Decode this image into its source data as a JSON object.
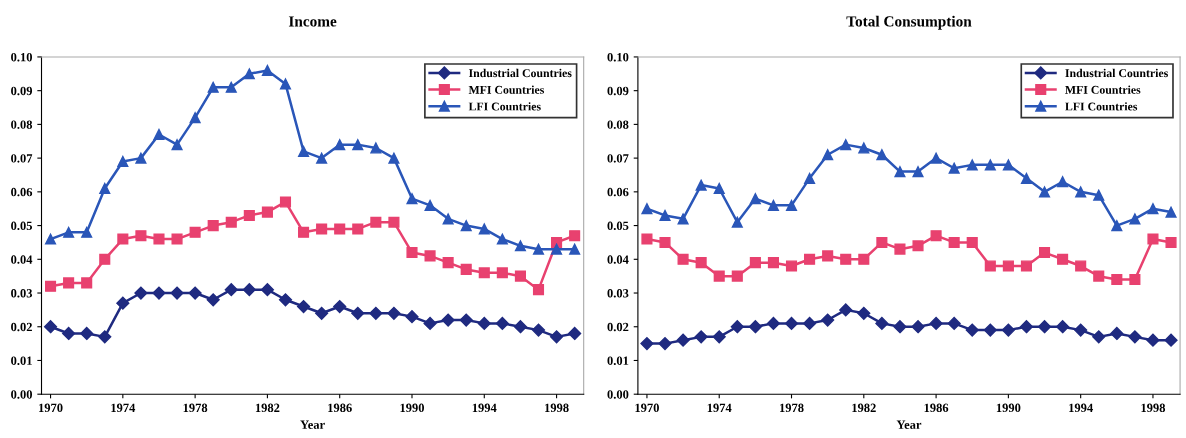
{
  "chart_data": [
    {
      "type": "line",
      "title": "Income",
      "xlabel": "Year",
      "categories": [
        "1970",
        null,
        null,
        null,
        "1974",
        null,
        null,
        null,
        "1978",
        null,
        null,
        null,
        "1982",
        null,
        null,
        null,
        "1986",
        null,
        null,
        null,
        "1990",
        null,
        null,
        null,
        "1994",
        null,
        null,
        null,
        "1998",
        null
      ],
      "ylim": [
        0,
        0.1
      ],
      "yticks": [
        {
          "value": 0,
          "label": "0.00"
        },
        {
          "value": 0.01,
          "label": "0.01"
        },
        {
          "value": 0.02,
          "label": "0.02"
        },
        {
          "value": 0.03,
          "label": "0.03"
        },
        {
          "value": 0.04,
          "label": "0.04"
        },
        {
          "value": 0.05,
          "label": "0.05"
        },
        {
          "value": 0.06,
          "label": "0.06"
        },
        {
          "value": 0.07,
          "label": "0.07"
        },
        {
          "value": 0.08,
          "label": "0.08"
        },
        {
          "value": 0.09,
          "label": "0.09"
        },
        {
          "value": 0.1,
          "label": "0.10"
        }
      ],
      "grid": false,
      "legend": "top right",
      "series": [
        {
          "name": "Industrial Countries",
          "color": "#1f2a80",
          "marker": "diamond",
          "values": [
            0.02,
            0.018,
            0.018,
            0.017,
            0.027,
            0.03,
            0.03,
            0.03,
            0.03,
            0.028,
            0.031,
            0.031,
            0.031,
            0.028,
            0.026,
            0.024,
            0.026,
            0.024,
            0.024,
            0.024,
            0.023,
            0.021,
            0.022,
            0.022,
            0.021,
            0.021,
            0.02,
            0.019,
            0.017,
            0.018
          ]
        },
        {
          "name": "MFI Countries",
          "color": "#e8416f",
          "marker": "square",
          "values": [
            0.032,
            0.033,
            0.033,
            0.04,
            0.046,
            0.047,
            0.046,
            0.046,
            0.048,
            0.05,
            0.051,
            0.053,
            0.054,
            0.057,
            0.048,
            0.049,
            0.049,
            0.049,
            0.051,
            0.051,
            0.042,
            0.041,
            0.039,
            0.037,
            0.036,
            0.036,
            0.035,
            0.031,
            0.045,
            0.047
          ]
        },
        {
          "name": "LFI Countries",
          "color": "#2a56b8",
          "marker": "triangle",
          "values": [
            0.046,
            0.048,
            0.048,
            0.061,
            0.069,
            0.07,
            0.077,
            0.074,
            0.082,
            0.091,
            0.091,
            0.095,
            0.096,
            0.092,
            0.072,
            0.07,
            0.074,
            0.074,
            0.073,
            0.07,
            0.058,
            0.056,
            0.052,
            0.05,
            0.049,
            0.046,
            0.044,
            0.043,
            0.043,
            0.043
          ]
        }
      ]
    },
    {
      "type": "line",
      "title": "Total Consumption",
      "xlabel": "Year",
      "categories": [
        "1970",
        null,
        null,
        null,
        "1974",
        null,
        null,
        null,
        "1978",
        null,
        null,
        null,
        "1982",
        null,
        null,
        null,
        "1986",
        null,
        null,
        null,
        "1990",
        null,
        null,
        null,
        "1994",
        null,
        null,
        null,
        "1998",
        null
      ],
      "ylim": [
        0,
        0.1
      ],
      "yticks": [
        {
          "value": 0,
          "label": "0.00"
        },
        {
          "value": 0.01,
          "label": "0.01"
        },
        {
          "value": 0.02,
          "label": "0.02"
        },
        {
          "value": 0.03,
          "label": "0.03"
        },
        {
          "value": 0.04,
          "label": "0.04"
        },
        {
          "value": 0.05,
          "label": "0.05"
        },
        {
          "value": 0.06,
          "label": "0.06"
        },
        {
          "value": 0.07,
          "label": "0.07"
        },
        {
          "value": 0.08,
          "label": "0.08"
        },
        {
          "value": 0.09,
          "label": "0.09"
        },
        {
          "value": 0.1,
          "label": "0.10"
        }
      ],
      "grid": false,
      "legend": "top right",
      "series": [
        {
          "name": "Industrial Countries",
          "color": "#1f2a80",
          "marker": "diamond",
          "values": [
            0.015,
            0.015,
            0.016,
            0.017,
            0.017,
            0.02,
            0.02,
            0.021,
            0.021,
            0.021,
            0.022,
            0.025,
            0.024,
            0.021,
            0.02,
            0.02,
            0.021,
            0.021,
            0.019,
            0.019,
            0.019,
            0.02,
            0.02,
            0.02,
            0.019,
            0.017,
            0.018,
            0.017,
            0.016,
            0.016
          ]
        },
        {
          "name": "MFI Countries",
          "color": "#e8416f",
          "marker": "square",
          "values": [
            0.046,
            0.045,
            0.04,
            0.039,
            0.035,
            0.035,
            0.039,
            0.039,
            0.038,
            0.04,
            0.041,
            0.04,
            0.04,
            0.045,
            0.043,
            0.044,
            0.047,
            0.045,
            0.045,
            0.038,
            0.038,
            0.038,
            0.042,
            0.04,
            0.038,
            0.035,
            0.034,
            0.034,
            0.046,
            0.045
          ]
        },
        {
          "name": "LFI Countries",
          "color": "#2a56b8",
          "marker": "triangle",
          "values": [
            0.055,
            0.053,
            0.052,
            0.062,
            0.061,
            0.051,
            0.058,
            0.056,
            0.056,
            0.064,
            0.071,
            0.074,
            0.073,
            0.071,
            0.066,
            0.066,
            0.07,
            0.067,
            0.068,
            0.068,
            0.068,
            0.064,
            0.06,
            0.063,
            0.06,
            0.059,
            0.05,
            0.052,
            0.055,
            0.054
          ]
        }
      ]
    }
  ]
}
